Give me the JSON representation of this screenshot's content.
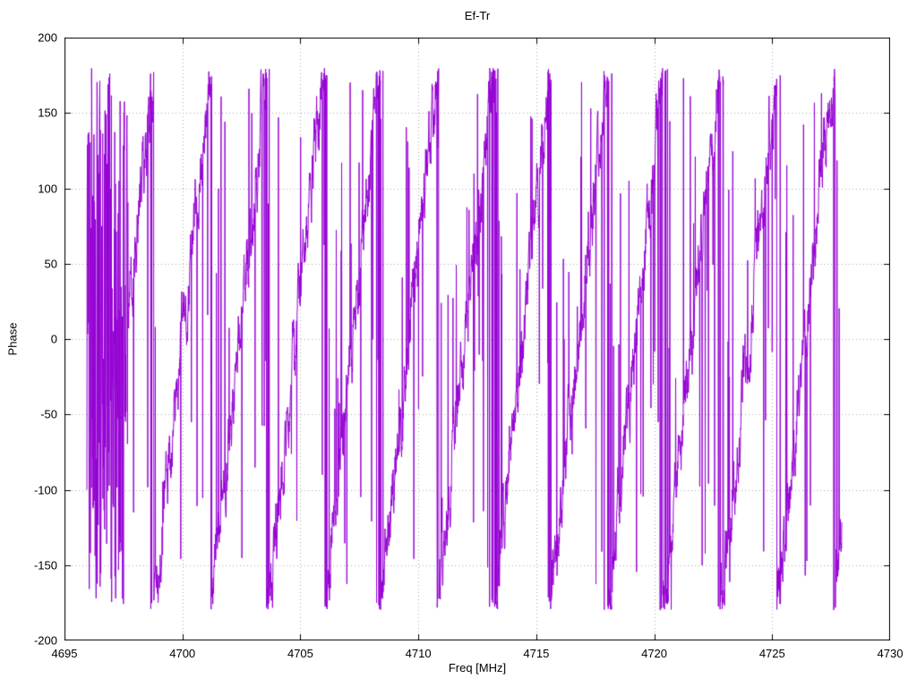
{
  "chart_data": {
    "type": "line",
    "title": "Ef-Tr",
    "xlabel": "Freq [MHz]",
    "ylabel": "Phase",
    "xlim": [
      4695,
      4730
    ],
    "ylim": [
      -200,
      200
    ],
    "x_ticks": [
      4695,
      4700,
      4705,
      4710,
      4715,
      4720,
      4725,
      4730
    ],
    "y_ticks": [
      -200,
      -150,
      -100,
      -50,
      0,
      50,
      100,
      150,
      200
    ],
    "grid": "dotted",
    "legend": "none",
    "line_color": "#9400d3",
    "grid_color": "#aaaaaa",
    "border_color": "#000000",
    "background": "#ffffff",
    "series": [
      {
        "name": "Ef-Tr phase",
        "description": "Wrapped phase response: rising sawtooth ramps from -180 to +180 degrees, period about 2.4 MHz (150 deg/MHz), heavy noise with frequent full-wrap spikes; very dense chaotic band near 4696-4697.7 MHz; data spans about 4696 to 4728 MHz",
        "synthesis": {
          "f_start": 4695.95,
          "f_end": 4727.95,
          "step": 0.01,
          "ramp_deg_per_mhz": 150,
          "f_ref": 4696.4,
          "wrap_low": -180,
          "wrap_high": 180,
          "noise_smooth": 0.75,
          "noise_scale": 60,
          "spike_prob": 0.05,
          "spike_scale": 260,
          "burst_region_end": 4697.7,
          "burst_extra": 170,
          "seed": 7
        }
      }
    ]
  }
}
